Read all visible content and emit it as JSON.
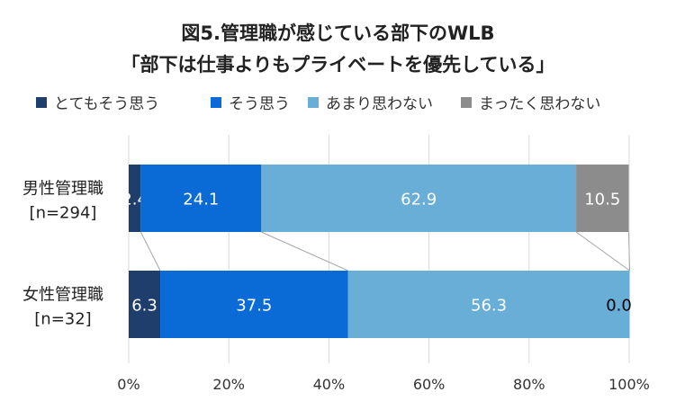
{
  "chart_data": {
    "type": "bar",
    "orientation": "horizontal",
    "stacked": true,
    "percent_stacked": true,
    "title_line1": "図5.管理職が感じている部下のWLB",
    "title_line2": "「部下は仕事よりもプライベートを優先している」",
    "categories": [
      {
        "label": "男性管理職",
        "n_label": "[n=294]"
      },
      {
        "label": "女性管理職",
        "n_label": "[n=32]"
      }
    ],
    "series": [
      {
        "name": "とてもそう思う",
        "color": "#1f3e6b",
        "values": [
          2.4,
          6.3
        ],
        "label_color": "#ffffff"
      },
      {
        "name": "そう思う",
        "color": "#0b6bd6",
        "values": [
          24.1,
          37.5
        ],
        "label_color": "#ffffff"
      },
      {
        "name": "あまり思わない",
        "color": "#69aed6",
        "values": [
          62.9,
          56.3
        ],
        "label_color": "#ffffff"
      },
      {
        "name": "まったく思わない",
        "color": "#8c8c8c",
        "values": [
          10.5,
          0.0
        ],
        "label_color": "#ffffff"
      }
    ],
    "xlim": [
      0,
      100
    ],
    "xticks": [
      "0%",
      "20%",
      "40%",
      "60%",
      "80%",
      "100%"
    ],
    "legend_position": "top",
    "grid": true,
    "series_lines": true
  }
}
